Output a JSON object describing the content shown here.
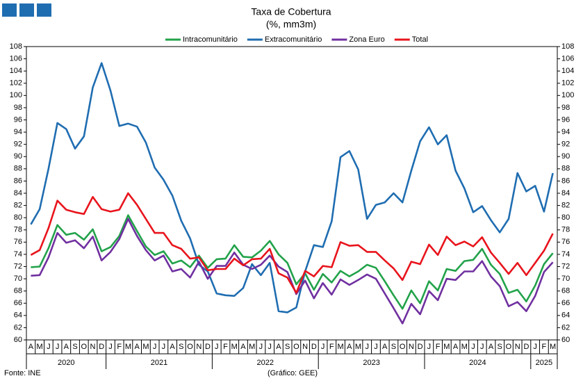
{
  "chart_data": {
    "type": "line",
    "title": "Taxa de Cobertura",
    "subtitle": "(%, mm3m)",
    "source": "Fonte: INE",
    "credit": "(Gráfico: GEE)",
    "categories": [
      "A",
      "M",
      "J",
      "J",
      "A",
      "S",
      "O",
      "N",
      "D",
      "J",
      "F",
      "M",
      "A",
      "M",
      "J",
      "J",
      "A",
      "S",
      "O",
      "N",
      "D",
      "J",
      "F",
      "M",
      "A",
      "M",
      "J",
      "J",
      "A",
      "S",
      "O",
      "N",
      "D",
      "J",
      "F",
      "M",
      "A",
      "M",
      "J",
      "J",
      "A",
      "S",
      "O",
      "N",
      "D",
      "J",
      "F",
      "M",
      "A",
      "M",
      "J",
      "J",
      "A",
      "S",
      "O",
      "N",
      "D",
      "J",
      "F",
      "M"
    ],
    "years": [
      "2020",
      "2021",
      "2022",
      "2023",
      "2024",
      "2025"
    ],
    "series": [
      {
        "name": "Intracomunitário",
        "color": "#22a24a",
        "values": [
          71.9,
          72,
          75,
          78.8,
          77.2,
          77.5,
          76.4,
          78.1,
          74.5,
          75.2,
          77,
          80.4,
          77.8,
          75.3,
          73.9,
          74.5,
          72.5,
          73,
          71.9,
          73.8,
          71.8,
          73.2,
          73.3,
          75.5,
          73.6,
          73.5,
          74.6,
          76.2,
          74,
          72.6,
          69.1,
          70.9,
          68.2,
          70.8,
          69.4,
          71.3,
          70.4,
          71.2,
          72.3,
          71.8,
          69.6,
          67.3,
          65.1,
          68.1,
          66,
          69.6,
          68.1,
          71.6,
          71.3,
          72.9,
          73.1,
          74.9,
          72.3,
          70.8,
          67.7,
          68.2,
          66.3,
          68.9,
          72.4,
          74.2
        ]
      },
      {
        "name": "Extracomunitário",
        "color": "#1f6db1",
        "values": [
          78.9,
          81.4,
          88,
          95.5,
          94.5,
          91.3,
          93.3,
          101.3,
          105.3,
          100.8,
          95,
          95.4,
          94.9,
          92.3,
          88.2,
          86.2,
          83.6,
          79.5,
          76.6,
          72.3,
          71.2,
          67.6,
          67.3,
          67.2,
          68.5,
          72.4,
          70.6,
          72.6,
          64.7,
          64.5,
          65.3,
          71.2,
          75.5,
          75.2,
          79.4,
          89.9,
          90.9,
          87.9,
          79.8,
          82.1,
          82.5,
          84,
          82.5,
          87.7,
          92.5,
          94.8,
          92,
          93.5,
          87.7,
          84.8,
          80.9,
          81.9,
          79.6,
          77.6,
          79.8,
          87.3,
          84.3,
          85.2,
          81,
          87.3
        ]
      },
      {
        "name": "Zona Euro",
        "color": "#7030a0",
        "values": [
          70.5,
          70.6,
          73.5,
          77.5,
          75.9,
          76.3,
          75,
          76.9,
          73,
          74.4,
          76.5,
          79.8,
          77,
          74.7,
          73,
          73.8,
          71.2,
          71.6,
          70.2,
          72.8,
          70,
          72.1,
          72.1,
          74.3,
          72.3,
          71.6,
          72.3,
          73.8,
          72,
          71.1,
          67.5,
          69.7,
          66.8,
          69.3,
          67.4,
          69.9,
          69,
          69.8,
          70.7,
          70,
          67.6,
          65.2,
          62.7,
          65.9,
          64.2,
          68,
          66.5,
          70,
          69.8,
          71.2,
          71.2,
          72.9,
          70.4,
          68.8,
          65.5,
          66.2,
          64.7,
          67.2,
          71.1,
          72.7
        ]
      },
      {
        "name": "Total",
        "color": "#e8141c",
        "values": [
          73.9,
          74.7,
          78.3,
          82.8,
          81.3,
          80.9,
          80.6,
          83.4,
          81.4,
          81,
          81.3,
          84,
          82.1,
          79.8,
          77.5,
          77.5,
          75.5,
          74.9,
          73.3,
          73.5,
          71.4,
          71.6,
          71.6,
          73.3,
          72.2,
          73.2,
          73.3,
          74.9,
          70.9,
          70.2,
          67.7,
          71.3,
          70.4,
          72.1,
          71.9,
          76,
          75.4,
          75.5,
          74.4,
          74.4,
          73,
          71.7,
          69.8,
          72.8,
          72.4,
          75.6,
          73.9,
          76.9,
          75.5,
          76.1,
          75.3,
          76.8,
          74.3,
          72.6,
          70.8,
          72.6,
          70.6,
          72.6,
          74.6,
          77.4
        ]
      }
    ],
    "ylim": [
      60,
      108
    ],
    "yticks": [
      60,
      62,
      64,
      66,
      68,
      70,
      72,
      74,
      76,
      78,
      80,
      82,
      84,
      86,
      88,
      90,
      92,
      94,
      96,
      98,
      100,
      102,
      104,
      106,
      108
    ],
    "y2lim": [
      60,
      108
    ],
    "y2ticks": [
      60,
      62,
      64,
      66,
      68,
      70,
      72,
      74,
      76,
      78,
      80,
      82,
      84,
      86,
      88,
      90,
      92,
      94,
      96,
      98,
      100,
      102,
      104,
      106,
      108
    ],
    "legend": "top"
  }
}
